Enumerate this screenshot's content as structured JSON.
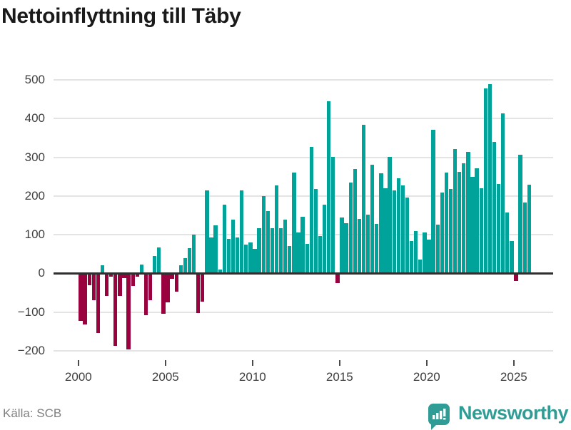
{
  "title": "Nettoinflyttning till Täby",
  "source": "Källa: SCB",
  "brand": {
    "name": "Newsworthy",
    "color": "#2f9d96",
    "icon": "bar-chart-pin-icon"
  },
  "chart_data": {
    "type": "bar",
    "title": "Nettoinflyttning till Täby",
    "frequency": "quarterly",
    "period_start": "2000 Q1",
    "period_end": "2025 Q4",
    "values": [
      -123,
      -132,
      -30,
      -70,
      -155,
      20,
      -59,
      -8,
      -188,
      -59,
      -12,
      -196,
      -33,
      -8,
      23,
      -108,
      -70,
      45,
      67,
      -105,
      -76,
      -15,
      -48,
      21,
      39,
      65,
      100,
      -102,
      -74,
      215,
      93,
      125,
      9,
      178,
      90,
      138,
      92,
      215,
      75,
      79,
      64,
      117,
      200,
      161,
      117,
      228,
      117,
      138,
      70,
      261,
      105,
      147,
      76,
      327,
      219,
      96,
      177,
      445,
      301,
      -25,
      145,
      130,
      234,
      270,
      141,
      384,
      151,
      281,
      128,
      258,
      220,
      302,
      214,
      245,
      228,
      197,
      83,
      110,
      36,
      106,
      88,
      372,
      126,
      209,
      260,
      218,
      321,
      263,
      284,
      315,
      249,
      272,
      220,
      479,
      490,
      340,
      232,
      413,
      157,
      84,
      -20,
      306,
      183,
      229
    ],
    "start_year": 2000,
    "x_tick_labels": [
      "2000",
      "2005",
      "2010",
      "2015",
      "2020",
      "2025"
    ],
    "x_tick_quarter_index": [
      0,
      20,
      40,
      60,
      80,
      100
    ],
    "y_tick_labels": [
      "500",
      "400",
      "300",
      "200",
      "100",
      "0",
      "−100",
      "−200"
    ],
    "y_gridlines": [
      500,
      400,
      300,
      200,
      100,
      0,
      -100,
      -200
    ],
    "ylim": [
      -200,
      500
    ],
    "grid": true,
    "legend": "none",
    "colors": {
      "positive": "#00a39a",
      "negative": "#99013f"
    }
  }
}
